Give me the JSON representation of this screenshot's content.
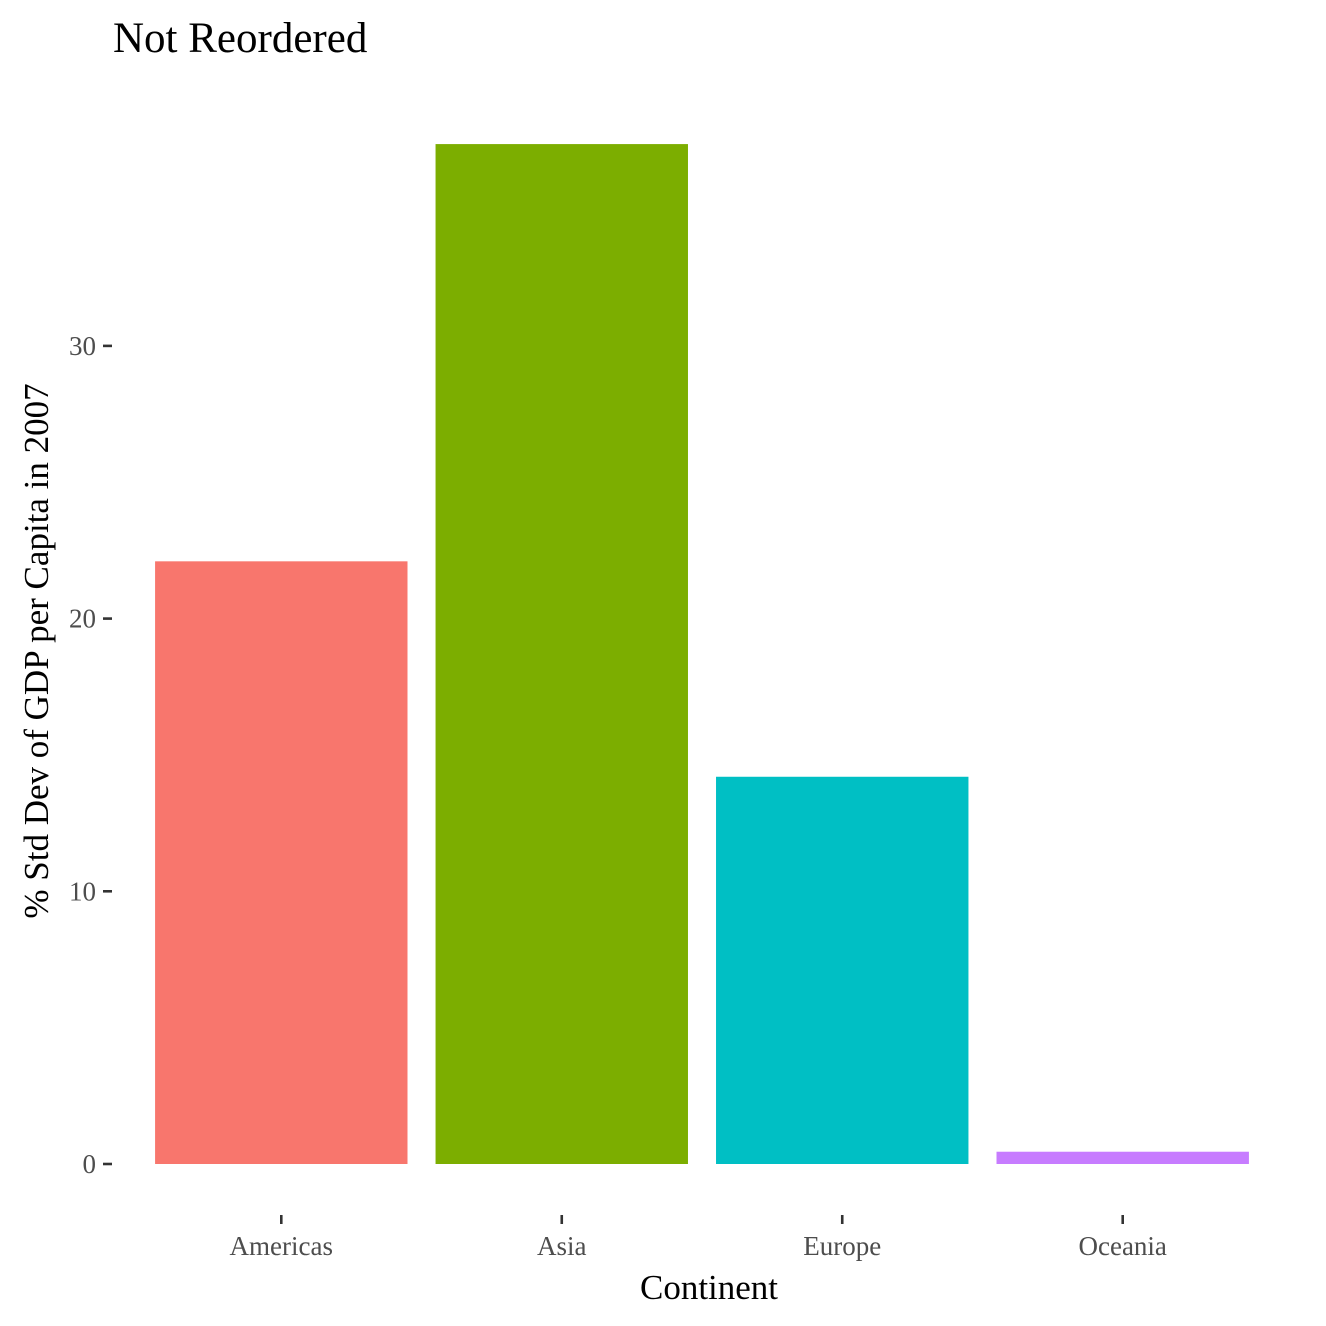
{
  "chart_data": {
    "type": "bar",
    "title": "Not Reordered",
    "xlabel": "Continent",
    "ylabel": "% Std Dev of GDP per Capita in 2007",
    "categories": [
      "Americas",
      "Asia",
      "Europe",
      "Oceania"
    ],
    "values": [
      22.1,
      37.4,
      14.2,
      0.45
    ],
    "colors": [
      "#F8766D",
      "#7CAE00",
      "#00BFC4",
      "#C77CFF"
    ],
    "y_ticks": [
      0,
      10,
      20,
      30
    ],
    "ylim": [
      0,
      39.2
    ],
    "grid": false,
    "legend": "none"
  }
}
